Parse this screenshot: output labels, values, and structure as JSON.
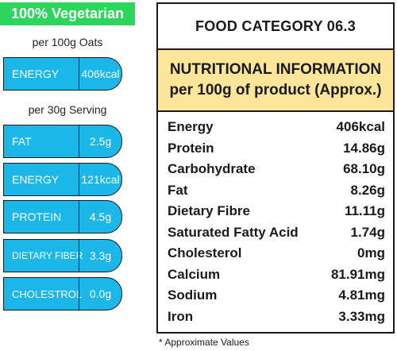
{
  "left": {
    "badge": "100% Vegetarian",
    "caption_oats": "per 100g Oats",
    "energy_100g": {
      "label": "ENERGY",
      "value": "406kcal"
    },
    "caption_serving": "per 30g Serving",
    "serving_items": [
      {
        "label": "FAT",
        "value": "2.5g"
      },
      {
        "label": "ENERGY",
        "value": "121kcal"
      },
      {
        "label": "PROTEIN",
        "value": "4.5g"
      },
      {
        "label": "DIETARY FIBER",
        "value": "3.3g"
      },
      {
        "label": "CHOLESTROL",
        "value": "0.0g"
      }
    ]
  },
  "panel": {
    "category_title": "FOOD CATEGORY 06.3",
    "heading_line1": "NUTRITIONAL INFORMATION",
    "heading_line2": "per 100g of product (Approx.)",
    "rows": [
      {
        "name": "Energy",
        "value": "406kcal"
      },
      {
        "name": "Protein",
        "value": "14.86g"
      },
      {
        "name": "Carbohydrate",
        "value": "68.10g"
      },
      {
        "name": "Fat",
        "value": "8.26g"
      },
      {
        "name": "Dietary Fibre",
        "value": "11.11g"
      },
      {
        "name": "Saturated Fatty Acid",
        "value": "1.74g"
      },
      {
        "name": "Cholesterol",
        "value": "0mg"
      },
      {
        "name": "Calcium",
        "value": "81.91mg"
      },
      {
        "name": "Sodium",
        "value": "4.81mg"
      },
      {
        "name": "Iron",
        "value": "3.33mg"
      }
    ]
  },
  "footnote": "* Approximate Values",
  "colors": {
    "badge": "#2bd65a",
    "pill": "#1ab7e8",
    "heading_bg": "#fde59a"
  }
}
